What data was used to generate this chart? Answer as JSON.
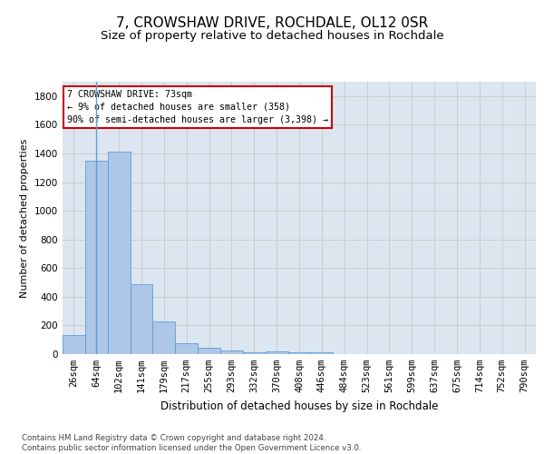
{
  "title": "7, CROWSHAW DRIVE, ROCHDALE, OL12 0SR",
  "subtitle": "Size of property relative to detached houses in Rochdale",
  "xlabel": "Distribution of detached houses by size in Rochdale",
  "ylabel": "Number of detached properties",
  "categories": [
    "26sqm",
    "64sqm",
    "102sqm",
    "141sqm",
    "179sqm",
    "217sqm",
    "255sqm",
    "293sqm",
    "332sqm",
    "370sqm",
    "408sqm",
    "446sqm",
    "484sqm",
    "523sqm",
    "561sqm",
    "599sqm",
    "637sqm",
    "675sqm",
    "714sqm",
    "752sqm",
    "790sqm"
  ],
  "values": [
    130,
    1350,
    1410,
    490,
    225,
    75,
    45,
    28,
    15,
    20,
    15,
    15,
    0,
    0,
    0,
    0,
    0,
    0,
    0,
    0,
    0
  ],
  "bar_color": "#aec6e8",
  "bar_edge_color": "#5a9fd4",
  "annotation_text": "7 CROWSHAW DRIVE: 73sqm\n← 9% of detached houses are smaller (358)\n90% of semi-detached houses are larger (3,398) →",
  "annotation_box_color": "#ffffff",
  "annotation_box_edge": "#cc0000",
  "ylim": [
    0,
    1900
  ],
  "yticks": [
    0,
    200,
    400,
    600,
    800,
    1000,
    1200,
    1400,
    1600,
    1800
  ],
  "grid_color": "#cccccc",
  "bg_color": "#dce6f0",
  "footer": "Contains HM Land Registry data © Crown copyright and database right 2024.\nContains public sector information licensed under the Open Government Licence v3.0.",
  "title_fontsize": 11,
  "subtitle_fontsize": 9.5,
  "ylabel_fontsize": 8,
  "xlabel_fontsize": 8.5,
  "tick_fontsize": 7.5
}
